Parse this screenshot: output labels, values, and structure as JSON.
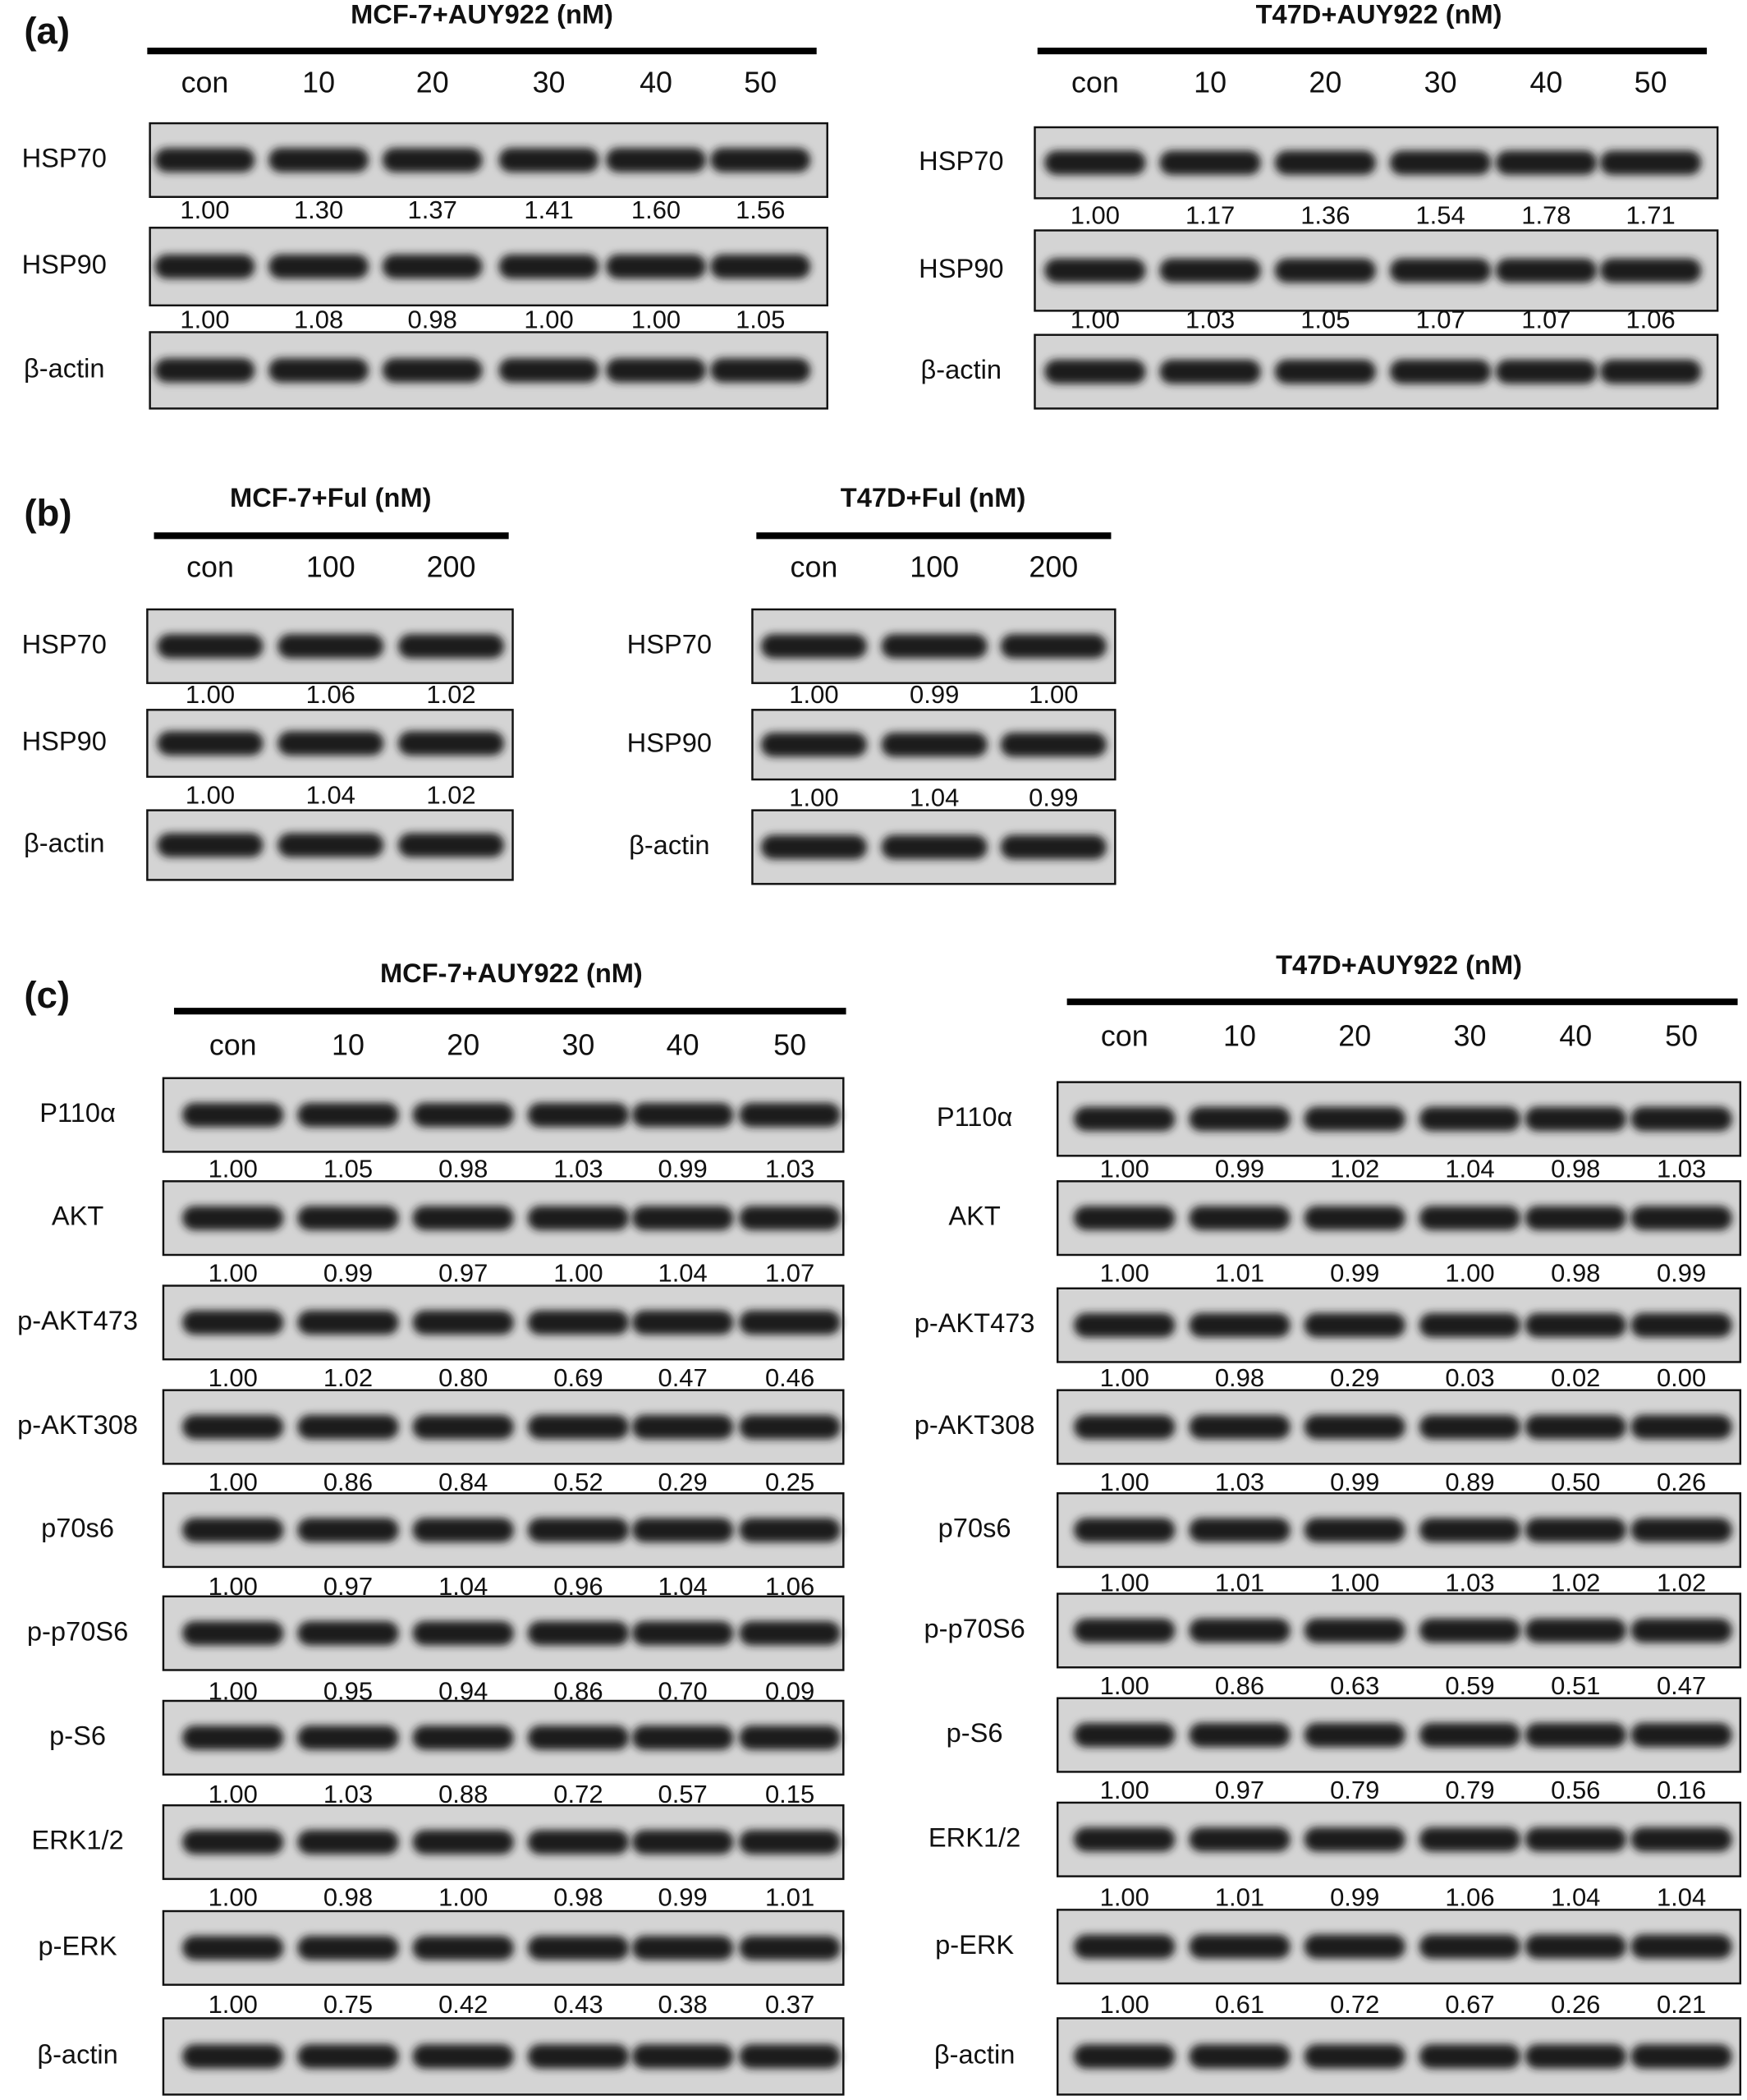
{
  "panels": [
    {
      "label": "(a)",
      "blots": [
        {
          "title": "MCF-7+AUY922 (nM)",
          "lanes": [
            "con",
            "10",
            "20",
            "30",
            "40",
            "50"
          ],
          "rows": [
            {
              "protein": "HSP70",
              "values": [
                "1.00",
                "1.30",
                "1.37",
                "1.41",
                "1.60",
                "1.56"
              ]
            },
            {
              "protein": "HSP90",
              "values": [
                "1.00",
                "1.08",
                "0.98",
                "1.00",
                "1.00",
                "1.05"
              ]
            },
            {
              "protein": "β-actin"
            }
          ]
        },
        {
          "title": "T47D+AUY922 (nM)",
          "lanes": [
            "con",
            "10",
            "20",
            "30",
            "40",
            "50"
          ],
          "rows": [
            {
              "protein": "HSP70",
              "values": [
                "1.00",
                "1.17",
                "1.36",
                "1.54",
                "1.78",
                "1.71"
              ]
            },
            {
              "protein": "HSP90",
              "values": [
                "1.00",
                "1.03",
                "1.05",
                "1.07",
                "1.07",
                "1.06"
              ]
            },
            {
              "protein": "β-actin"
            }
          ]
        }
      ]
    },
    {
      "label": "(b)",
      "blots": [
        {
          "title": "MCF-7+Ful (nM)",
          "lanes": [
            "con",
            "100",
            "200"
          ],
          "rows": [
            {
              "protein": "HSP70",
              "values": [
                "1.00",
                "1.06",
                "1.02"
              ]
            },
            {
              "protein": "HSP90",
              "values": [
                "1.00",
                "1.04",
                "1.02"
              ]
            },
            {
              "protein": "β-actin"
            }
          ]
        },
        {
          "title": "T47D+Ful (nM)",
          "lanes": [
            "con",
            "100",
            "200"
          ],
          "rows": [
            {
              "protein": "HSP70",
              "values": [
                "1.00",
                "0.99",
                "1.00"
              ]
            },
            {
              "protein": "HSP90",
              "values": [
                "1.00",
                "1.04",
                "0.99"
              ]
            },
            {
              "protein": "β-actin"
            }
          ]
        }
      ]
    },
    {
      "label": "(c)",
      "blots": [
        {
          "title": "MCF-7+AUY922 (nM)",
          "lanes": [
            "con",
            "10",
            "20",
            "30",
            "40",
            "50"
          ],
          "rows": [
            {
              "protein": "P110α",
              "values": [
                "1.00",
                "1.05",
                "0.98",
                "1.03",
                "0.99",
                "1.03"
              ]
            },
            {
              "protein": "AKT",
              "values": [
                "1.00",
                "0.99",
                "0.97",
                "1.00",
                "1.04",
                "1.07"
              ]
            },
            {
              "protein": "p-AKT473",
              "values": [
                "1.00",
                "1.02",
                "0.80",
                "0.69",
                "0.47",
                "0.46"
              ]
            },
            {
              "protein": "p-AKT308",
              "values": [
                "1.00",
                "0.86",
                "0.84",
                "0.52",
                "0.29",
                "0.25"
              ]
            },
            {
              "protein": "p70s6",
              "values": [
                "1.00",
                "0.97",
                "1.04",
                "0.96",
                "1.04",
                "1.06"
              ]
            },
            {
              "protein": "p-p70S6",
              "values": [
                "1.00",
                "0.95",
                "0.94",
                "0.86",
                "0.70",
                "0.09"
              ]
            },
            {
              "protein": "p-S6",
              "values": [
                "1.00",
                "1.03",
                "0.88",
                "0.72",
                "0.57",
                "0.15"
              ]
            },
            {
              "protein": "ERK1/2",
              "values": [
                "1.00",
                "0.98",
                "1.00",
                "0.98",
                "0.99",
                "1.01"
              ]
            },
            {
              "protein": "p-ERK",
              "values": [
                "1.00",
                "0.75",
                "0.42",
                "0.43",
                "0.38",
                "0.37"
              ]
            },
            {
              "protein": "β-actin"
            }
          ]
        },
        {
          "title": "T47D+AUY922 (nM)",
          "lanes": [
            "con",
            "10",
            "20",
            "30",
            "40",
            "50"
          ],
          "rows": [
            {
              "protein": "P110α",
              "values": [
                "1.00",
                "0.99",
                "1.02",
                "1.04",
                "0.98",
                "1.03"
              ]
            },
            {
              "protein": "AKT",
              "values": [
                "1.00",
                "1.01",
                "0.99",
                "1.00",
                "0.98",
                "0.99"
              ]
            },
            {
              "protein": "p-AKT473",
              "values": [
                "1.00",
                "0.98",
                "0.29",
                "0.03",
                "0.02",
                "0.00"
              ]
            },
            {
              "protein": "p-AKT308",
              "values": [
                "1.00",
                "1.03",
                "0.99",
                "0.89",
                "0.50",
                "0.26"
              ]
            },
            {
              "protein": "p70s6",
              "values": [
                "1.00",
                "1.01",
                "1.00",
                "1.03",
                "1.02",
                "1.02"
              ]
            },
            {
              "protein": "p-p70S6",
              "values": [
                "1.00",
                "0.86",
                "0.63",
                "0.59",
                "0.51",
                "0.47"
              ]
            },
            {
              "protein": "p-S6",
              "values": [
                "1.00",
                "0.97",
                "0.79",
                "0.79",
                "0.56",
                "0.16"
              ]
            },
            {
              "protein": "ERK1/2",
              "values": [
                "1.00",
                "1.01",
                "0.99",
                "1.06",
                "1.04",
                "1.04"
              ]
            },
            {
              "protein": "p-ERK",
              "values": [
                "1.00",
                "0.61",
                "0.72",
                "0.67",
                "0.26",
                "0.21"
              ]
            },
            {
              "protein": "β-actin"
            }
          ]
        }
      ]
    }
  ]
}
